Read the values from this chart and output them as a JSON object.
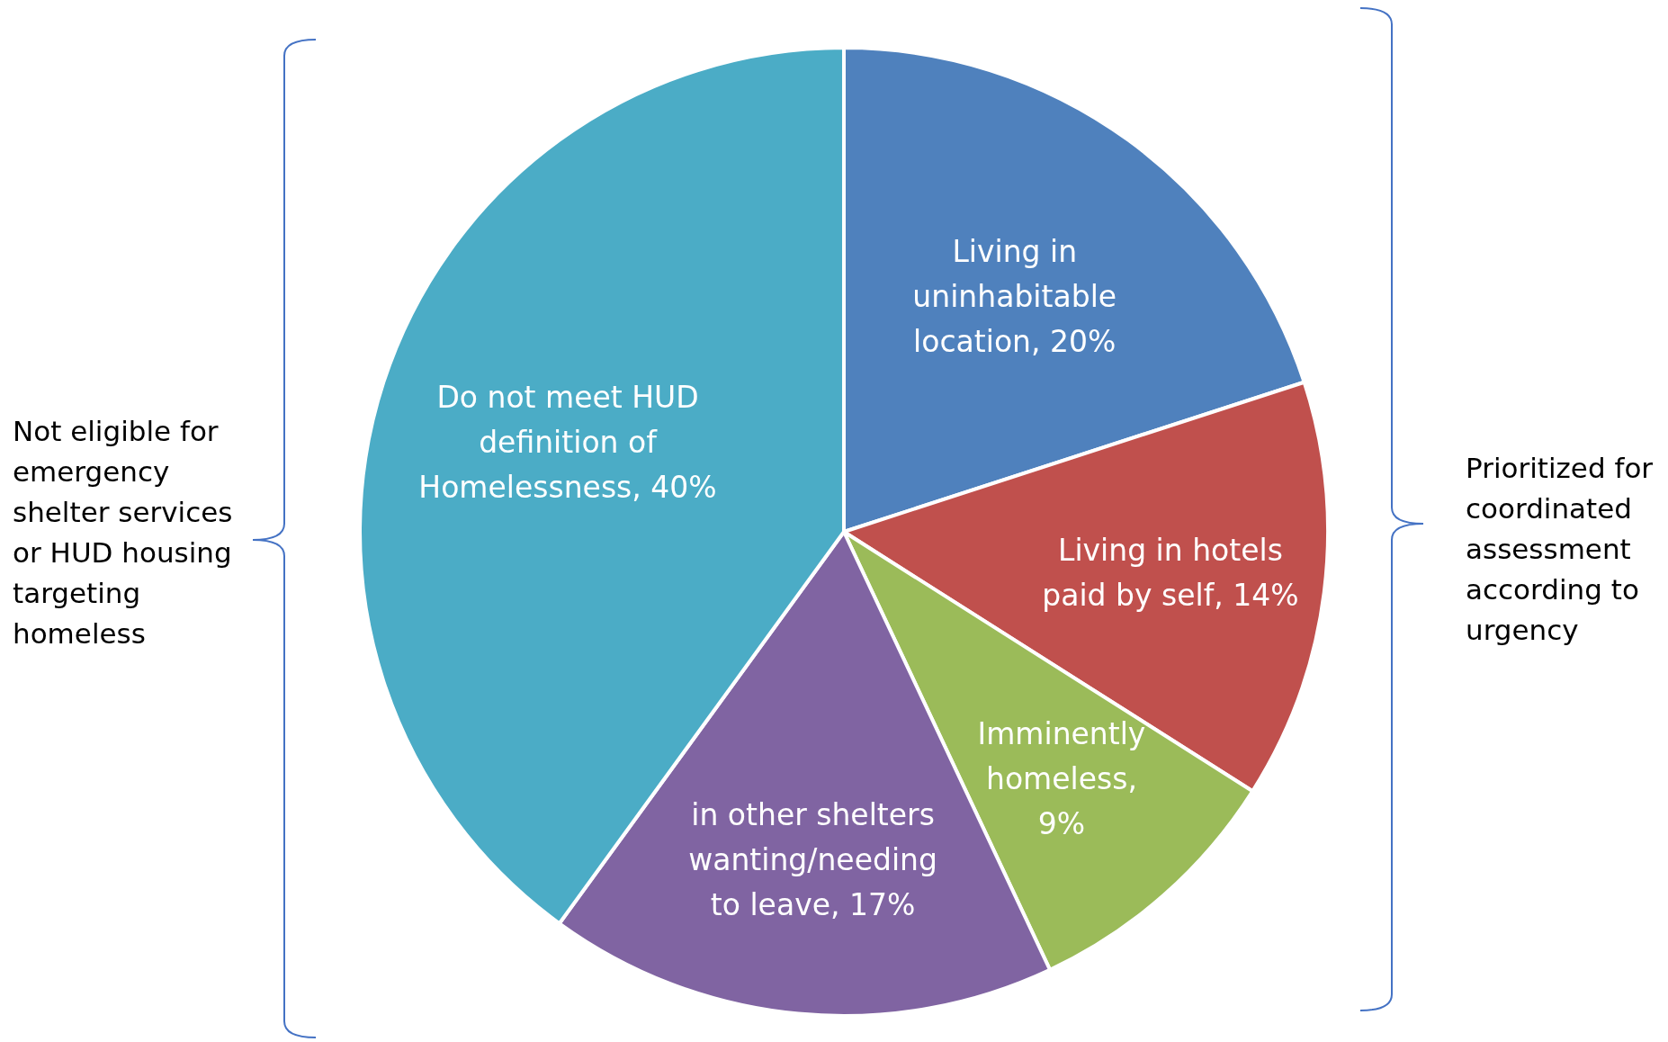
{
  "chart_data": {
    "type": "pie",
    "categories": [
      "Living in uninhabitable location, 20%",
      "Living in hotels paid by self, 14%",
      "Imminently homeless, 9%",
      "in other shelters wanting/needing to leave, 17%",
      "Do not meet HUD definition of Homelessness, 40%"
    ],
    "values": [
      20,
      14,
      9,
      17,
      40
    ],
    "colors": [
      "#4f81bd",
      "#c0504d",
      "#9bbb59",
      "#8064a2",
      "#4bacc6"
    ],
    "legend": false,
    "annotations": [
      "Not eligible for emergency shelter services or HUD housing targeting homeless",
      "Prioritized for coordinated assessment according to urgency"
    ]
  }
}
